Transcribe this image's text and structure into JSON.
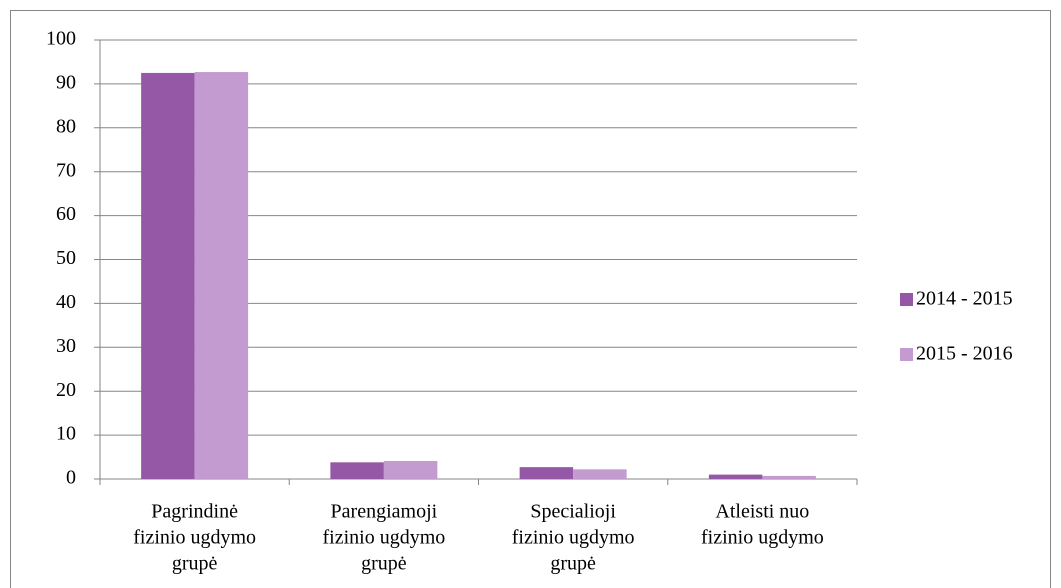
{
  "chart_data": {
    "type": "bar",
    "categories": [
      [
        "Pagrindinė",
        "fizinio ugdymo",
        "grupė"
      ],
      [
        "Parengiamoji",
        "fizinio ugdymo",
        "grupė"
      ],
      [
        "Specialioji",
        "fizinio ugdymo",
        "grupė"
      ],
      [
        "Atleisti nuo",
        "fizinio ugdymo"
      ]
    ],
    "series": [
      {
        "name": "2014 - 2015",
        "color": "#9558a7",
        "values": [
          92.5,
          3.8,
          2.7,
          1.0
        ]
      },
      {
        "name": "2015 - 2016",
        "color": "#c39bd0",
        "values": [
          92.7,
          4.1,
          2.2,
          0.7
        ]
      }
    ],
    "ylim": [
      0,
      100
    ],
    "yticks": [
      0,
      10,
      20,
      30,
      40,
      50,
      60,
      70,
      80,
      90,
      100
    ],
    "grid": true,
    "legend": "right"
  }
}
